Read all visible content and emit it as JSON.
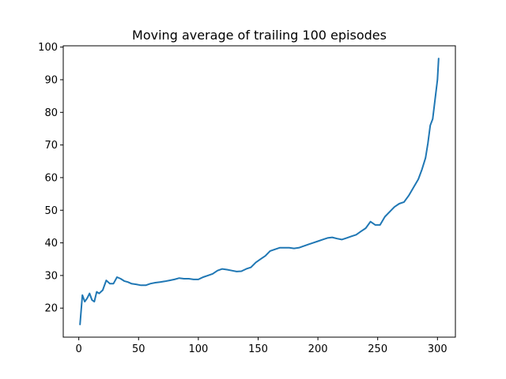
{
  "chart_data": {
    "type": "line",
    "title": "Moving average of trailing 100 episodes",
    "xlabel": "",
    "ylabel": "",
    "xlim": [
      -13,
      315
    ],
    "ylim": [
      11.1,
      100.4
    ],
    "xticks": [
      0,
      50,
      100,
      150,
      200,
      250,
      300
    ],
    "yticks": [
      20,
      30,
      40,
      50,
      60,
      70,
      80,
      90,
      100
    ],
    "grid": false,
    "legend": "none",
    "colors": {
      "line": "#1f77b4",
      "axes": "#000000"
    },
    "series": [
      {
        "x": [
          1,
          3,
          5,
          7,
          9,
          11,
          13,
          15,
          17,
          20,
          23,
          26,
          29,
          32,
          35,
          38,
          41,
          44,
          48,
          52,
          56,
          60,
          64,
          68,
          72,
          76,
          80,
          84,
          88,
          92,
          96,
          100,
          104,
          108,
          112,
          116,
          120,
          124,
          128,
          132,
          136,
          140,
          144,
          148,
          152,
          156,
          160,
          164,
          168,
          172,
          176,
          180,
          184,
          188,
          192,
          196,
          200,
          204,
          208,
          212,
          216,
          220,
          224,
          228,
          232,
          236,
          240,
          244,
          248,
          252,
          256,
          260,
          264,
          268,
          272,
          276,
          280,
          284,
          287,
          290,
          292,
          294,
          296,
          298,
          300,
          301
        ],
        "y": [
          15,
          24,
          22,
          23,
          24.5,
          22.5,
          22,
          25,
          24.5,
          25.5,
          28.5,
          27.5,
          27.5,
          29.5,
          29,
          28.3,
          28,
          27.5,
          27.3,
          27,
          27,
          27.5,
          27.8,
          28,
          28.2,
          28.5,
          28.8,
          29.2,
          29,
          29,
          28.8,
          28.8,
          29.5,
          30,
          30.5,
          31.5,
          32,
          31.8,
          31.5,
          31.2,
          31.3,
          32,
          32.5,
          34,
          35,
          36,
          37.5,
          38,
          38.5,
          38.5,
          38.5,
          38.3,
          38.5,
          39,
          39.5,
          40,
          40.5,
          41,
          41.5,
          41.7,
          41.3,
          41,
          41.5,
          42,
          42.5,
          43.5,
          44.5,
          46.5,
          45.5,
          45.5,
          48,
          49.5,
          51,
          52,
          52.5,
          54.5,
          57,
          59.5,
          62.5,
          66,
          70.5,
          76,
          78,
          84,
          90,
          96.5
        ]
      }
    ]
  }
}
